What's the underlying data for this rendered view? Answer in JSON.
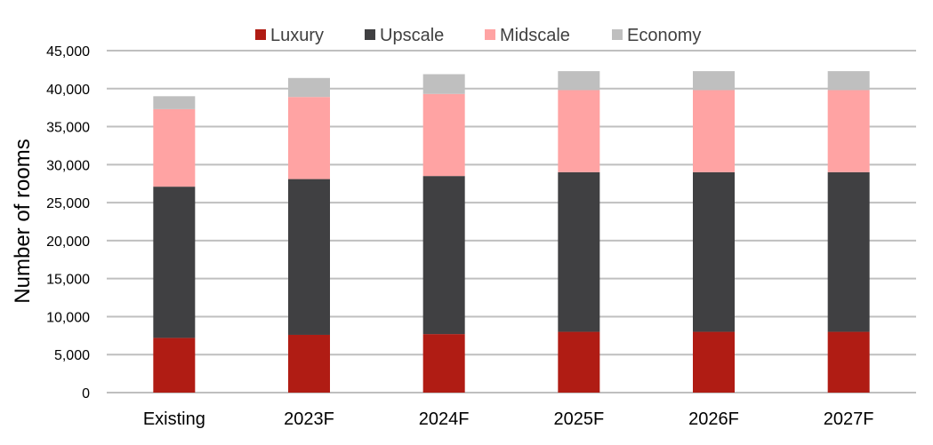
{
  "chart_data": {
    "type": "bar",
    "stacked": true,
    "title": "",
    "xlabel": "",
    "ylabel": "Number of rooms",
    "ylim": [
      0,
      45000
    ],
    "yticks": [
      0,
      5000,
      10000,
      15000,
      20000,
      25000,
      30000,
      35000,
      40000,
      45000
    ],
    "ytick_labels": [
      "0",
      "5,000",
      "10,000",
      "15,000",
      "20,000",
      "25,000",
      "30,000",
      "35,000",
      "40,000",
      "45,000"
    ],
    "categories": [
      "Existing",
      "2023F",
      "2024F",
      "2025F",
      "2026F",
      "2027F"
    ],
    "series": [
      {
        "name": "Luxury",
        "color": "#b01c14",
        "values": [
          7200,
          7600,
          7700,
          8000,
          8000,
          8000
        ]
      },
      {
        "name": "Upscale",
        "color": "#404042",
        "values": [
          19900,
          20500,
          20800,
          21000,
          21000,
          21000
        ]
      },
      {
        "name": "Midscale",
        "color": "#ffa3a3",
        "values": [
          10200,
          10800,
          10800,
          10800,
          10800,
          10800
        ]
      },
      {
        "name": "Economy",
        "color": "#bfbfbf",
        "values": [
          1700,
          2500,
          2600,
          2500,
          2500,
          2500
        ]
      }
    ],
    "grid": true,
    "gridline_color": "#bfbfbf",
    "legend_position": "top-center"
  }
}
